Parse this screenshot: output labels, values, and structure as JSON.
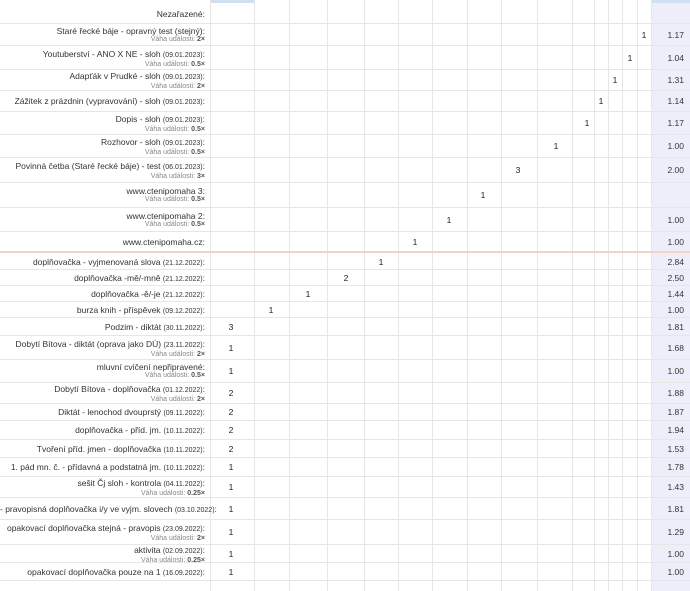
{
  "category_label": "Nezařazené:",
  "weight_prefix": "Váha události:",
  "rows": [
    {
      "name": "Staré řecké báje - opravný test (stejný)",
      "date": "",
      "weight": "2×",
      "value": "1",
      "avg": "1.17"
    },
    {
      "name": "Youtuberství - ANO X NE - sloh",
      "date": "(09.01.2023)",
      "weight": "0.5×",
      "value": "1",
      "avg": "1.04"
    },
    {
      "name": "Adapťák v Prudké - sloh",
      "date": "(09.01.2023)",
      "weight": "2×",
      "value": "1",
      "avg": "1.31"
    },
    {
      "name": "Zážitek z prázdnin (vypravování) - sloh",
      "date": "(09.01.2023)",
      "weight": "",
      "value": "1",
      "avg": "1.14"
    },
    {
      "name": "Dopis - sloh",
      "date": "(09.01.2023)",
      "weight": "0.5×",
      "value": "1",
      "avg": "1.17"
    },
    {
      "name": "Rozhovor - sloh",
      "date": "(09.01.2023)",
      "weight": "0.5×",
      "value": "1",
      "avg": "1.00"
    },
    {
      "name": "Povinná četba (Staré řecké báje) - test",
      "date": "(06.01.2023)",
      "weight": "3×",
      "value": "3",
      "avg": "2.00"
    },
    {
      "name": "www.ctenipomaha 3",
      "date": "",
      "weight": "0.5×",
      "value": "1",
      "avg": ""
    },
    {
      "name": "www.ctenipomaha 2",
      "date": "",
      "weight": "0.5×",
      "value": "1",
      "avg": "1.00"
    },
    {
      "name": "www.ctenipomaha.cz",
      "date": "",
      "weight": "",
      "value": "1",
      "avg": "1.00"
    },
    {
      "name": "doplňovačka - vyjmenovaná slova",
      "date": "(21.12.2022)",
      "weight": "",
      "value": "1",
      "avg": "2.84"
    },
    {
      "name": "doplňovačka -mě/-mně",
      "date": "(21.12.2022)",
      "weight": "",
      "value": "2",
      "avg": "2.50"
    },
    {
      "name": "doplňovačka -ě/-je",
      "date": "(21.12.2022)",
      "weight": "",
      "value": "1",
      "avg": "1.44"
    },
    {
      "name": "burza knih - příspěvek",
      "date": "(09.12.2022)",
      "weight": "",
      "value": "1",
      "avg": "1.00"
    },
    {
      "name": "Podzim - diktát",
      "date": "(30.11.2022)",
      "weight": "",
      "value": "3",
      "avg": "1.81"
    },
    {
      "name": "Dobytí Bítova - diktát (oprava jako DÚ)",
      "date": "(23.11.2022)",
      "weight": "2×",
      "value": "1",
      "avg": "1.68"
    },
    {
      "name": "mluvní cvičení nepřipravené",
      "date": "",
      "weight": "0.5×",
      "value": "1",
      "avg": "1.00"
    },
    {
      "name": "Dobytí Bítova - doplňovačka",
      "date": "(01.12.2022)",
      "weight": "2×",
      "value": "2",
      "avg": "1.88"
    },
    {
      "name": "Diktát - lenochod dvouprstý",
      "date": "(09.11.2022)",
      "weight": "",
      "value": "2",
      "avg": "1.87"
    },
    {
      "name": "doplňovačka - příd. jm.",
      "date": "(10.11.2022)",
      "weight": "",
      "value": "2",
      "avg": "1.94"
    },
    {
      "name": "Tvoření příd. jmen - doplňovačka",
      "date": "(10.11.2022)",
      "weight": "",
      "value": "2",
      "avg": "1.53"
    },
    {
      "name": "1. pád mn. č. - přídavná a podstatná jm.",
      "date": "(10.11.2022)",
      "weight": "",
      "value": "1",
      "avg": "1.78"
    },
    {
      "name": "sešit Čj sloh - kontrola",
      "date": "(04.11.2022)",
      "weight": "0.25×",
      "value": "1",
      "avg": "1.43"
    },
    {
      "name": "- pravopisná doplňovačka i/y ve vyjm. slovech",
      "date": "(03.10.2022)",
      "weight": "",
      "value": "1",
      "avg": "1.81"
    },
    {
      "name": "opakovací doplňovačka stejná - pravopis",
      "date": "(23.09.2022)",
      "weight": "2×",
      "value": "1",
      "avg": "1.29"
    },
    {
      "name": "aktivita",
      "date": "(02.09.2022)",
      "weight": "0.25×",
      "value": "1",
      "avg": "1.00"
    },
    {
      "name": "opakovací doplňovačka pouze na 1",
      "date": "(16.09.2022)",
      "weight": "",
      "value": "1",
      "avg": "1.00"
    }
  ]
}
